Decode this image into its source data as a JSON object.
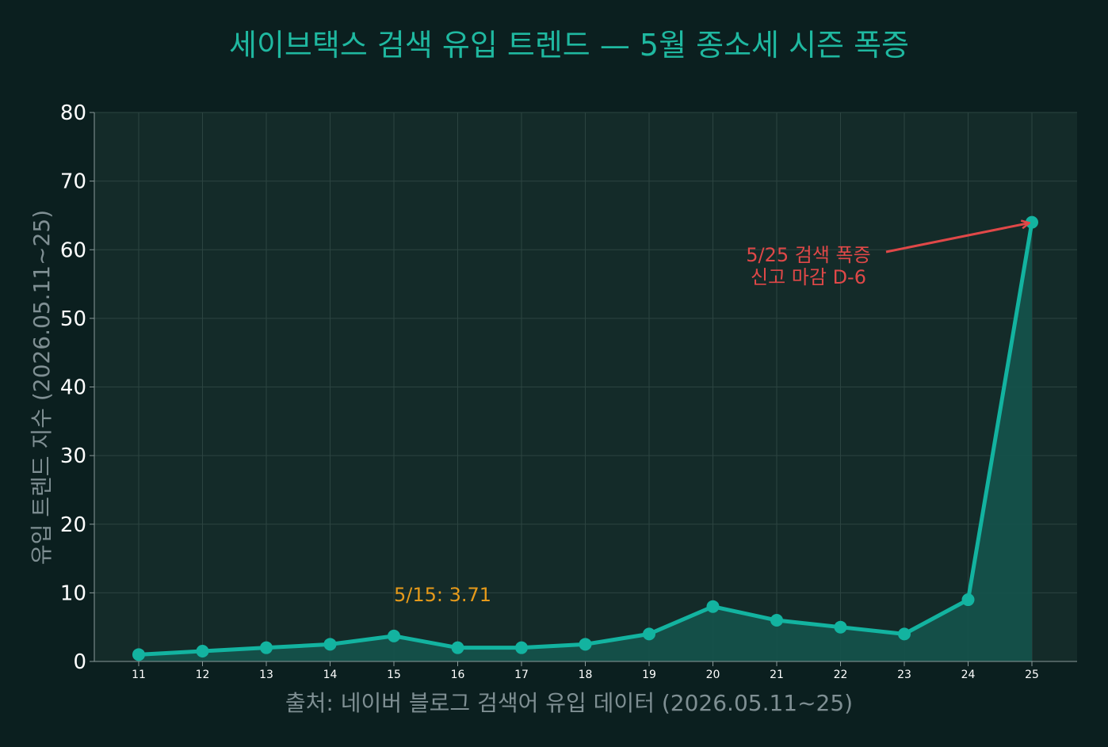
{
  "chart_data": {
    "type": "line",
    "title": "세이브택스 검색 유입 트렌드 — 5월 종소세 시즌 폭증",
    "xlabel": "출처: 네이버 블로그 검색어 유입 데이터 (2026.05.11~25)",
    "ylabel": "유입 트렌드 지수 (2026.05.11~25)",
    "x": [
      "11",
      "12",
      "13",
      "14",
      "15",
      "16",
      "17",
      "18",
      "19",
      "20",
      "21",
      "22",
      "23",
      "24",
      "25"
    ],
    "y": [
      1,
      1.5,
      2,
      2.5,
      3.71,
      2,
      2,
      2.5,
      4,
      8,
      6,
      5,
      4,
      9,
      64
    ],
    "ylim": [
      0,
      80
    ],
    "yticks": [
      "0",
      "10",
      "20",
      "30",
      "40",
      "50",
      "60",
      "70",
      "80"
    ],
    "grid": true,
    "fill_under_line": true,
    "colors": {
      "background": "#0b1f1f",
      "plot_background": "#142b29",
      "grid": "#2c4441",
      "line": "#13b3a0",
      "fill": "#14534b",
      "title": "#1fb8a0",
      "axis_label": "#7f8f93",
      "tick": "#ffffff",
      "annotation_peak": "#e04848",
      "annotation_point": "#e69a1a"
    },
    "annotations": [
      {
        "id": "peak",
        "target_index": 14,
        "lines": [
          "5/25 검색 폭증",
          "신고 마감 D-6"
        ],
        "color": "#e04848",
        "arrow": true
      },
      {
        "id": "point-0515",
        "target_index": 4,
        "lines": [
          "5/15: 3.71"
        ],
        "color": "#e69a1a",
        "arrow": false
      }
    ]
  }
}
